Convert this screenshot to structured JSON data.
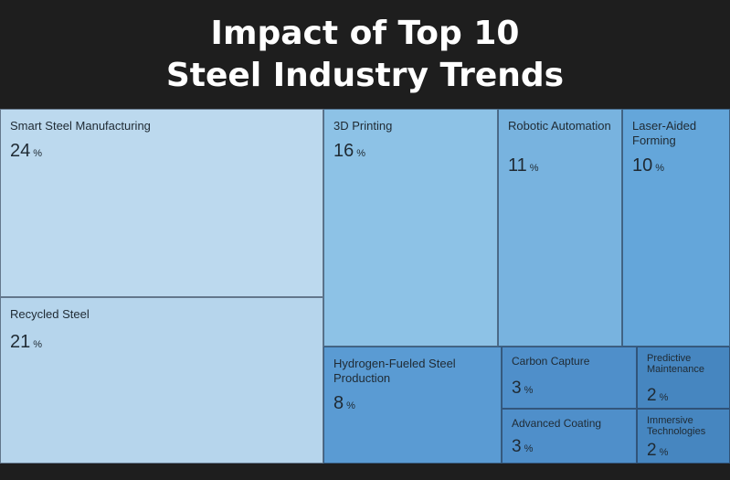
{
  "title_line1": "Impact of Top 10",
  "title_line2": "Steel Industry Trends",
  "chart_data": {
    "type": "treemap",
    "unit": "%",
    "title": "Impact of Top 10 Steel Industry Trends",
    "items": [
      {
        "label": "Smart Steel Manufacturing",
        "value": 24,
        "color": "#bcd9ee"
      },
      {
        "label": "Recycled Steel",
        "value": 21,
        "color": "#b6d5ec"
      },
      {
        "label": "3D Printing",
        "value": 16,
        "color": "#8dc2e6"
      },
      {
        "label": "Robotic Automation",
        "value": 11,
        "color": "#78b3df"
      },
      {
        "label": "Laser-Aided Forming",
        "value": 10,
        "color": "#64a6da"
      },
      {
        "label": "Hydrogen-Fueled Steel Production",
        "value": 8,
        "color": "#5a9bd3"
      },
      {
        "label": "Carbon Capture",
        "value": 3,
        "color": "#4f8fca"
      },
      {
        "label": "Advanced Coating",
        "value": 3,
        "color": "#4f8fca"
      },
      {
        "label": "Predictive Maintenance",
        "value": 2,
        "color": "#4686c0"
      },
      {
        "label": "Immersive Technologies",
        "value": 2,
        "color": "#4686c0"
      }
    ]
  }
}
